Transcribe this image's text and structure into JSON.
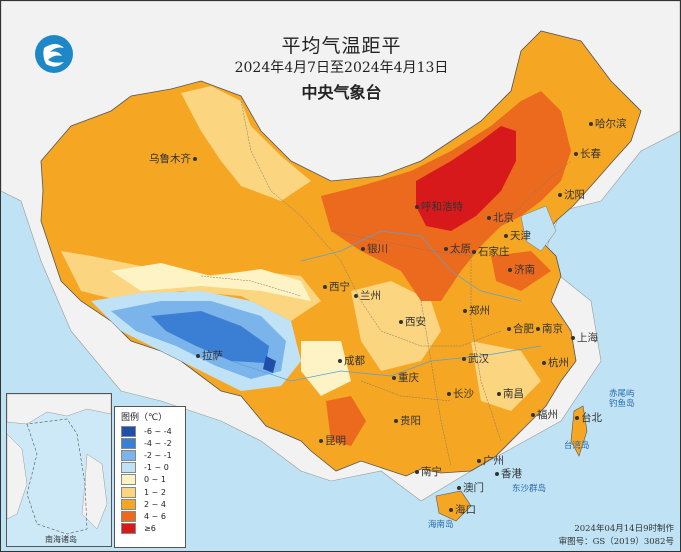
{
  "title": "平均气温距平",
  "subtitle": "2024年4月7日至2024年4月13日",
  "agency": "中央气象台",
  "legend": {
    "title": "图例（℃）",
    "items": [
      {
        "label": "-6 ~ -4",
        "color": "#1f4fa8"
      },
      {
        "label": "-4 ~ -2",
        "color": "#3b7fd4"
      },
      {
        "label": "-2 ~ -1",
        "color": "#7bb4ea"
      },
      {
        "label": "-1 ~ 0",
        "color": "#bfe2f7"
      },
      {
        "label": "0 ~ 1",
        "color": "#fdf3c4"
      },
      {
        "label": "1 ~ 2",
        "color": "#fbd57f"
      },
      {
        "label": "2 ~ 4",
        "color": "#f5a623"
      },
      {
        "label": "4 ~ 6",
        "color": "#ec6a1e"
      },
      {
        "label": "≥6",
        "color": "#d7191c"
      }
    ]
  },
  "cities": [
    {
      "name": "哈尔滨"
    },
    {
      "name": "长春"
    },
    {
      "name": "沈阳"
    },
    {
      "name": "呼和浩特"
    },
    {
      "name": "北京"
    },
    {
      "name": "天津"
    },
    {
      "name": "石家庄"
    },
    {
      "name": "太原"
    },
    {
      "name": "济南"
    },
    {
      "name": "银川"
    },
    {
      "name": "西宁"
    },
    {
      "name": "兰州"
    },
    {
      "name": "西安"
    },
    {
      "name": "郑州"
    },
    {
      "name": "合肥"
    },
    {
      "name": "南京"
    },
    {
      "name": "上海"
    },
    {
      "name": "杭州"
    },
    {
      "name": "武汉"
    },
    {
      "name": "成都"
    },
    {
      "name": "重庆"
    },
    {
      "name": "长沙"
    },
    {
      "name": "南昌"
    },
    {
      "name": "福州"
    },
    {
      "name": "台北"
    },
    {
      "name": "贵阳"
    },
    {
      "name": "昆明"
    },
    {
      "name": "南宁"
    },
    {
      "name": "广州"
    },
    {
      "name": "香港"
    },
    {
      "name": "澳门"
    },
    {
      "name": "海口"
    },
    {
      "name": "拉萨"
    },
    {
      "name": "乌鲁木齐"
    }
  ],
  "sea_labels": {
    "east_sea": "东沙群岛",
    "hainan": "海南岛",
    "chiwei": "赤尾屿",
    "diaoyu": "钓鱼岛",
    "taiwan": "台湾岛"
  },
  "inset": {
    "label": "南海诸岛"
  },
  "footer": {
    "made": "2024年04月14日9时制作",
    "approval": "审图号：GS（2019）3082号"
  },
  "colors": {
    "sea": "#bfe3f5",
    "land_outside": "#f2f2f2",
    "border": "#777777"
  }
}
